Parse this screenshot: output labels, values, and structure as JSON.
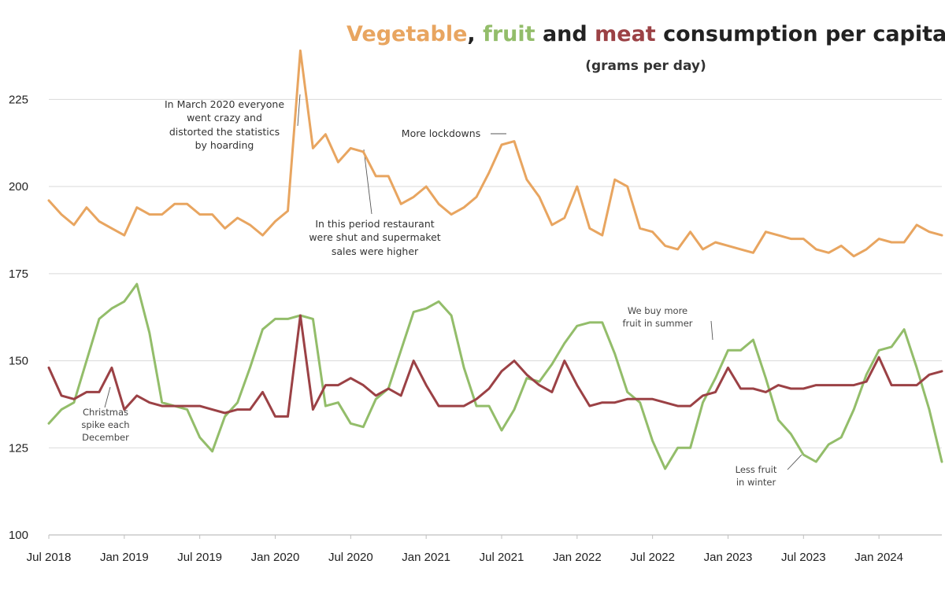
{
  "title_parts": {
    "vegetable": "Vegetable",
    "comma": ",",
    "fruit": "fruit",
    "and": "and",
    "meat": "meat",
    "rest": "consumption per capita"
  },
  "subtitle": "(grams per day)",
  "colors": {
    "vegetable": "#e8a560",
    "fruit": "#93bd6a",
    "meat": "#9b4145",
    "grid": "#d9d9d9",
    "axis": "#bfbfbf",
    "text": "#222222"
  },
  "annotations": {
    "march2020": "In March 2020 everyone\nwent crazy and\ndistorted the statistics\nby hoarding",
    "restaurants": "In this period restaurant\nwere shut and supermaket\nsales were higher",
    "lockdowns": "More lockdowns",
    "summer": "We buy more\nfruit in summer",
    "christmas": "Christmas\nspike each\nDecember",
    "winter": "Less fruit\nin winter"
  },
  "chart_data": {
    "type": "line",
    "title": "Vegetable, fruit and meat consumption per capita",
    "subtitle": "(grams per day)",
    "ylim": [
      100,
      240
    ],
    "yticks": [
      100,
      125,
      150,
      175,
      200,
      225
    ],
    "grid": true,
    "x_ticks": [
      {
        "label": "Jul 2018",
        "index": 0
      },
      {
        "label": "Jan 2019",
        "index": 6
      },
      {
        "label": "Jul 2019",
        "index": 12
      },
      {
        "label": "Jan 2020",
        "index": 18
      },
      {
        "label": "Jul 2020",
        "index": 24
      },
      {
        "label": "Jan 2021",
        "index": 30
      },
      {
        "label": "Jul 2021",
        "index": 36
      },
      {
        "label": "Jan 2022",
        "index": 42
      },
      {
        "label": "Jul 2022",
        "index": 48
      },
      {
        "label": "Jan 2023",
        "index": 54
      },
      {
        "label": "Jul 2023",
        "index": 60
      },
      {
        "label": "Jan 2024",
        "index": 66
      }
    ],
    "series": [
      {
        "name": "Vegetable",
        "color": "#e8a560",
        "values": [
          196,
          192,
          189,
          194,
          190,
          188,
          186,
          194,
          192,
          192,
          195,
          195,
          192,
          192,
          188,
          191,
          189,
          186,
          190,
          193,
          239,
          211,
          215,
          207,
          211,
          210,
          203,
          203,
          195,
          197,
          200,
          195,
          192,
          194,
          197,
          204,
          212,
          213,
          202,
          197,
          189,
          191,
          200,
          188,
          186,
          202,
          200,
          188,
          187,
          183,
          182,
          187,
          182,
          184,
          183,
          182,
          181,
          187,
          186,
          185,
          185,
          182,
          181,
          183,
          180,
          182,
          185,
          184,
          184,
          189,
          187,
          186
        ]
      },
      {
        "name": "fruit",
        "color": "#93bd6a",
        "values": [
          132,
          136,
          138,
          150,
          162,
          165,
          167,
          172,
          158,
          138,
          137,
          136,
          128,
          124,
          134,
          138,
          148,
          159,
          162,
          162,
          163,
          162,
          137,
          138,
          132,
          131,
          139,
          142,
          153,
          164,
          165,
          167,
          163,
          148,
          137,
          137,
          130,
          136,
          145,
          144,
          149,
          155,
          160,
          161,
          161,
          152,
          141,
          138,
          127,
          119,
          125,
          125,
          138,
          145,
          153,
          153,
          156,
          145,
          133,
          129,
          123,
          121,
          126,
          128,
          136,
          146,
          153,
          154,
          159,
          148,
          136,
          121
        ]
      },
      {
        "name": "meat",
        "color": "#9b4145",
        "values": [
          148,
          140,
          139,
          141,
          141,
          148,
          136,
          140,
          138,
          137,
          137,
          137,
          137,
          136,
          135,
          136,
          136,
          141,
          134,
          134,
          163,
          136,
          143,
          143,
          145,
          143,
          140,
          142,
          140,
          150,
          143,
          137,
          137,
          137,
          139,
          142,
          147,
          150,
          146,
          143,
          141,
          150,
          143,
          137,
          138,
          138,
          139,
          139,
          139,
          138,
          137,
          137,
          140,
          141,
          148,
          142,
          142,
          141,
          143,
          142,
          142,
          143,
          143,
          143,
          143,
          144,
          151,
          143,
          143,
          143,
          146,
          147
        ]
      }
    ]
  }
}
